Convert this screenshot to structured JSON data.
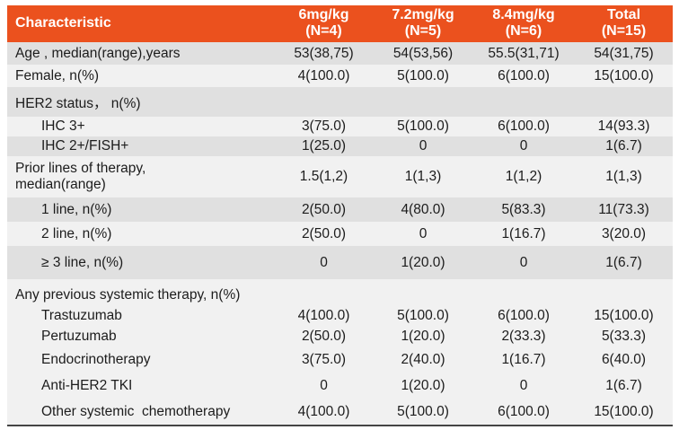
{
  "table": {
    "header": {
      "characteristic": "Characteristic",
      "columns": [
        {
          "dose": "6mg/kg",
          "n": "(N=4)"
        },
        {
          "dose": "7.2mg/kg",
          "n": "(N=5)"
        },
        {
          "dose": "8.4mg/kg",
          "n": "(N=6)"
        },
        {
          "dose": "Total",
          "n": "(N=15)"
        }
      ]
    },
    "rows": [
      {
        "label": "Age , median(range),years",
        "indent": false,
        "shade": "dark",
        "values": [
          "53(38,75)",
          "54(53,56)",
          "55.5(31,71)",
          "54(31,75)"
        ]
      },
      {
        "label": "Female, n(%)",
        "indent": false,
        "shade": "light",
        "values": [
          "4(100.0)",
          "5(100.0)",
          "6(100.0)",
          "15(100.0)"
        ]
      },
      {
        "label": "HER2 status， n(%)",
        "indent": false,
        "shade": "dark",
        "values": [
          "",
          "",
          "",
          ""
        ]
      },
      {
        "label": "IHC 3+",
        "indent": true,
        "shade": "light",
        "values": [
          "3(75.0)",
          "5(100.0)",
          "6(100.0)",
          "14(93.3)"
        ]
      },
      {
        "label": "IHC 2+/FISH+",
        "indent": true,
        "shade": "dark",
        "values": [
          "1(25.0)",
          "0",
          "0",
          "1(6.7)"
        ]
      },
      {
        "label": "Prior lines of therapy,\nmedian(range)",
        "indent": false,
        "shade": "light",
        "values": [
          "1.5(1,2)",
          "1(1,3)",
          "1(1,2)",
          "1(1,3)"
        ]
      },
      {
        "label": "1 line, n(%)",
        "indent": true,
        "shade": "dark",
        "values": [
          "2(50.0)",
          "4(80.0)",
          "5(83.3)",
          "11(73.3)"
        ]
      },
      {
        "label": "2 line, n(%)",
        "indent": true,
        "shade": "light",
        "values": [
          "2(50.0)",
          "0",
          "1(16.7)",
          "3(20.0)"
        ]
      },
      {
        "label": "≥ 3 line, n(%)",
        "indent": true,
        "shade": "dark",
        "values": [
          "0",
          "1(20.0)",
          "0",
          "1(6.7)"
        ]
      },
      {
        "label": "Any previous systemic therapy, n(%)",
        "indent": false,
        "shade": "light",
        "values": [
          "",
          "",
          "",
          ""
        ]
      },
      {
        "label": "Trastuzumab",
        "indent": true,
        "shade": "light",
        "values": [
          "4(100.0)",
          "5(100.0)",
          "6(100.0)",
          "15(100.0)"
        ]
      },
      {
        "label": "Pertuzumab",
        "indent": true,
        "shade": "light",
        "values": [
          "2(50.0)",
          "1(20.0)",
          "2(33.3)",
          "5(33.3)"
        ]
      },
      {
        "label": "Endocrinotherapy",
        "indent": true,
        "shade": "light",
        "values": [
          "3(75.0)",
          "2(40.0)",
          "1(16.7)",
          "6(40.0)"
        ]
      },
      {
        "label": "Anti-HER2 TKI",
        "indent": true,
        "shade": "light",
        "values": [
          "0",
          "1(20.0)",
          "0",
          "1(6.7)"
        ]
      },
      {
        "label": "Other systemic  chemotherapy",
        "indent": true,
        "shade": "light",
        "values": [
          "4(100.0)",
          "5(100.0)",
          "6(100.0)",
          "15(100.0)"
        ]
      }
    ]
  },
  "colors": {
    "header_bg": "#EB511E",
    "header_text": "#FFFFFF",
    "row_dark": "#E0E0E0",
    "row_light": "#F1F1F1",
    "body_text": "#1C1C1C",
    "bottom_border": "#454545"
  }
}
